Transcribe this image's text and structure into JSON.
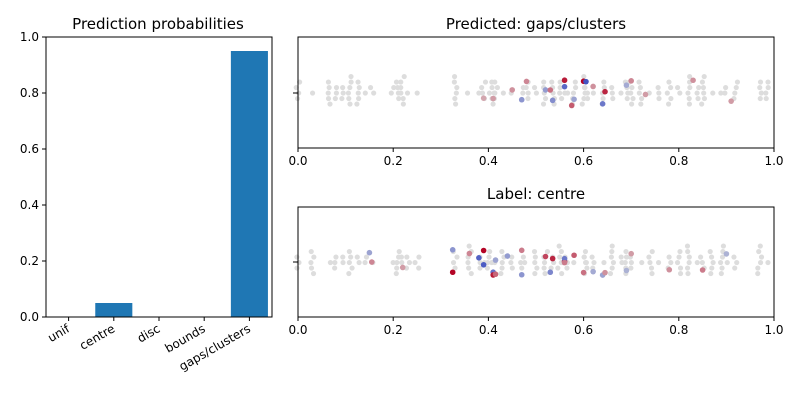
{
  "chart_data": [
    {
      "type": "bar",
      "title": "Prediction probabilities",
      "categories": [
        "unif",
        "centre",
        "disc",
        "bounds",
        "gaps/clusters"
      ],
      "values": [
        0.0,
        0.05,
        0.0,
        0.0,
        0.95
      ],
      "ylim": [
        0,
        1.0
      ],
      "yticks": [
        "0.0",
        "0.2",
        "0.4",
        "0.6",
        "0.8",
        "1.0"
      ],
      "bar_color": "#1f77b4",
      "grid": false
    },
    {
      "type": "scatter",
      "title": "Predicted: gaps/clusters",
      "xlim": [
        0,
        1.0
      ],
      "xticks": [
        "0.0",
        "0.2",
        "0.4",
        "0.6",
        "0.8",
        "1.0"
      ],
      "colormap": "coolwarm",
      "neutral_color": "#dddddd",
      "x": [
        0.0,
        0.03,
        0.065,
        0.08,
        0.095,
        0.11,
        0.125,
        0.14,
        0.155,
        0.2,
        0.21,
        0.22,
        0.23,
        0.25,
        0.33,
        0.36,
        0.38,
        0.39,
        0.4,
        0.41,
        0.415,
        0.43,
        0.45,
        0.47,
        0.48,
        0.5,
        0.52,
        0.535,
        0.55,
        0.56,
        0.565,
        0.58,
        0.6,
        0.605,
        0.62,
        0.64,
        0.66,
        0.68,
        0.69,
        0.7,
        0.72,
        0.74,
        0.76,
        0.78,
        0.8,
        0.82,
        0.84,
        0.85,
        0.87,
        0.89,
        0.9,
        0.92,
        0.97,
        0.985
      ],
      "highlights": [
        {
          "x": 0.41,
          "v": 0.3
        },
        {
          "x": 0.45,
          "v": 0.35
        },
        {
          "x": 0.39,
          "v": 0.25
        },
        {
          "x": 0.47,
          "v": -0.5
        },
        {
          "x": 0.48,
          "v": 0.4
        },
        {
          "x": 0.52,
          "v": -0.45
        },
        {
          "x": 0.53,
          "v": 0.5
        },
        {
          "x": 0.535,
          "v": -0.55
        },
        {
          "x": 0.56,
          "v": -0.8
        },
        {
          "x": 0.56,
          "v": 0.9
        },
        {
          "x": 0.575,
          "v": 0.6
        },
        {
          "x": 0.58,
          "v": -0.4
        },
        {
          "x": 0.6,
          "v": 1.0
        },
        {
          "x": 0.605,
          "v": -0.95
        },
        {
          "x": 0.62,
          "v": 0.35
        },
        {
          "x": 0.64,
          "v": -0.7
        },
        {
          "x": 0.645,
          "v": 0.85
        },
        {
          "x": 0.69,
          "v": -0.35
        },
        {
          "x": 0.7,
          "v": 0.4
        },
        {
          "x": 0.73,
          "v": 0.3
        },
        {
          "x": 0.83,
          "v": 0.35
        },
        {
          "x": 0.91,
          "v": 0.3
        }
      ]
    },
    {
      "type": "scatter",
      "title": "Label: centre",
      "xlim": [
        0,
        1.0
      ],
      "xticks": [
        "0.0",
        "0.2",
        "0.4",
        "0.6",
        "0.8",
        "1.0"
      ],
      "colormap": "coolwarm",
      "neutral_color": "#dddddd",
      "x": [
        0.0,
        0.03,
        0.065,
        0.08,
        0.095,
        0.11,
        0.125,
        0.14,
        0.155,
        0.2,
        0.21,
        0.22,
        0.23,
        0.25,
        0.33,
        0.36,
        0.38,
        0.39,
        0.4,
        0.41,
        0.415,
        0.43,
        0.45,
        0.47,
        0.48,
        0.5,
        0.52,
        0.535,
        0.55,
        0.56,
        0.565,
        0.58,
        0.6,
        0.605,
        0.62,
        0.64,
        0.66,
        0.68,
        0.69,
        0.7,
        0.72,
        0.74,
        0.76,
        0.78,
        0.8,
        0.82,
        0.84,
        0.85,
        0.87,
        0.89,
        0.9,
        0.92,
        0.97,
        0.985
      ],
      "highlights": [
        {
          "x": 0.15,
          "v": -0.4
        },
        {
          "x": 0.155,
          "v": 0.4
        },
        {
          "x": 0.22,
          "v": 0.3
        },
        {
          "x": 0.325,
          "v": 1.0
        },
        {
          "x": 0.325,
          "v": -0.5
        },
        {
          "x": 0.36,
          "v": 0.4
        },
        {
          "x": 0.38,
          "v": -0.85
        },
        {
          "x": 0.39,
          "v": 1.0
        },
        {
          "x": 0.39,
          "v": -0.9
        },
        {
          "x": 0.41,
          "v": -0.75
        },
        {
          "x": 0.41,
          "v": 0.9
        },
        {
          "x": 0.415,
          "v": -0.4
        },
        {
          "x": 0.415,
          "v": 0.55
        },
        {
          "x": 0.44,
          "v": -0.45
        },
        {
          "x": 0.47,
          "v": 0.45
        },
        {
          "x": 0.47,
          "v": -0.5
        },
        {
          "x": 0.52,
          "v": 0.7
        },
        {
          "x": 0.53,
          "v": -0.6
        },
        {
          "x": 0.535,
          "v": 0.85
        },
        {
          "x": 0.56,
          "v": 0.9
        },
        {
          "x": 0.56,
          "v": -0.7
        },
        {
          "x": 0.56,
          "v": 0.45
        },
        {
          "x": 0.58,
          "v": 0.6
        },
        {
          "x": 0.6,
          "v": 0.5
        },
        {
          "x": 0.62,
          "v": -0.35
        },
        {
          "x": 0.64,
          "v": -0.4
        },
        {
          "x": 0.645,
          "v": 0.35
        },
        {
          "x": 0.69,
          "v": -0.3
        },
        {
          "x": 0.7,
          "v": 0.3
        },
        {
          "x": 0.78,
          "v": 0.35
        },
        {
          "x": 0.85,
          "v": 0.45
        },
        {
          "x": 0.9,
          "v": -0.3
        }
      ]
    }
  ]
}
